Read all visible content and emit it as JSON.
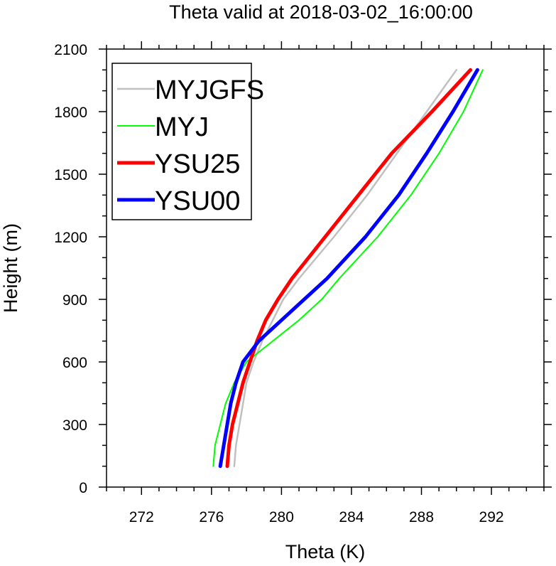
{
  "chart_data": {
    "type": "line",
    "title": "Theta valid at 2018-03-02_16:00:00",
    "xlabel": "Theta (K)",
    "ylabel": "Height (m)",
    "xlim": [
      270,
      295
    ],
    "ylim": [
      0,
      2100
    ],
    "xticks": [
      "272",
      "276",
      "280",
      "284",
      "288",
      "292"
    ],
    "xtick_values": [
      272,
      276,
      280,
      284,
      288,
      292
    ],
    "xminor_step": 1,
    "yticks": [
      "0",
      "300",
      "600",
      "900",
      "1200",
      "1500",
      "1800",
      "2100"
    ],
    "ytick_values": [
      0,
      300,
      600,
      900,
      1200,
      1500,
      1800,
      2100
    ],
    "yminor_step": 100,
    "grid": false,
    "legend_position": "top-left",
    "series": [
      {
        "name": "MYJGFS",
        "color": "#c0c0c0",
        "width": 2.5,
        "points": [
          [
            277.3,
            100
          ],
          [
            277.4,
            200
          ],
          [
            277.6,
            300
          ],
          [
            277.8,
            400
          ],
          [
            278.0,
            500
          ],
          [
            278.4,
            600
          ],
          [
            278.9,
            700
          ],
          [
            279.5,
            800
          ],
          [
            280.1,
            900
          ],
          [
            281.0,
            1000
          ],
          [
            283.0,
            1200
          ],
          [
            284.9,
            1400
          ],
          [
            286.6,
            1600
          ],
          [
            288.3,
            1800
          ],
          [
            290.0,
            2000
          ]
        ]
      },
      {
        "name": "MYJ",
        "color": "#00ff00",
        "width": 2,
        "points": [
          [
            276.1,
            100
          ],
          [
            276.2,
            200
          ],
          [
            276.5,
            300
          ],
          [
            276.8,
            400
          ],
          [
            277.3,
            500
          ],
          [
            278.0,
            600
          ],
          [
            279.5,
            700
          ],
          [
            281.0,
            800
          ],
          [
            282.3,
            900
          ],
          [
            283.3,
            1000
          ],
          [
            285.5,
            1200
          ],
          [
            287.4,
            1400
          ],
          [
            289.0,
            1600
          ],
          [
            290.4,
            1800
          ],
          [
            291.5,
            2000
          ]
        ]
      },
      {
        "name": "YSU25",
        "color": "#ff0000",
        "width": 5,
        "points": [
          [
            276.9,
            100
          ],
          [
            277.0,
            200
          ],
          [
            277.2,
            300
          ],
          [
            277.5,
            400
          ],
          [
            277.8,
            500
          ],
          [
            278.2,
            600
          ],
          [
            278.6,
            700
          ],
          [
            279.1,
            800
          ],
          [
            279.8,
            900
          ],
          [
            280.6,
            1000
          ],
          [
            282.5,
            1200
          ],
          [
            284.4,
            1400
          ],
          [
            286.3,
            1600
          ],
          [
            288.6,
            1800
          ],
          [
            290.8,
            2000
          ]
        ]
      },
      {
        "name": "YSU00",
        "color": "#0000ff",
        "width": 5,
        "points": [
          [
            276.5,
            100
          ],
          [
            276.7,
            200
          ],
          [
            276.9,
            300
          ],
          [
            277.1,
            400
          ],
          [
            277.4,
            500
          ],
          [
            277.8,
            600
          ],
          [
            278.7,
            700
          ],
          [
            280.0,
            800
          ],
          [
            281.3,
            900
          ],
          [
            282.6,
            1000
          ],
          [
            284.8,
            1200
          ],
          [
            286.7,
            1400
          ],
          [
            288.3,
            1600
          ],
          [
            289.8,
            1800
          ],
          [
            291.2,
            2000
          ]
        ]
      }
    ]
  }
}
